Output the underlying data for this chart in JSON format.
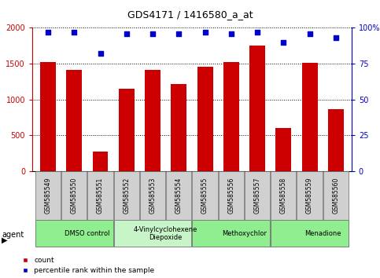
{
  "title": "GDS4171 / 1416580_a_at",
  "samples": [
    "GSM585549",
    "GSM585550",
    "GSM585551",
    "GSM585552",
    "GSM585553",
    "GSM585554",
    "GSM585555",
    "GSM585556",
    "GSM585557",
    "GSM585558",
    "GSM585559",
    "GSM585560"
  ],
  "counts": [
    1520,
    1410,
    270,
    1150,
    1410,
    1220,
    1460,
    1520,
    1750,
    600,
    1510,
    860
  ],
  "percentile_ranks": [
    97,
    97,
    82,
    96,
    96,
    96,
    97,
    96,
    97,
    90,
    96,
    93
  ],
  "agents": [
    {
      "label": "DMSO control",
      "start": 0,
      "end": 3,
      "color": "#90EE90"
    },
    {
      "label": "4-Vinylcyclohexene\nDiepoxide",
      "start": 3,
      "end": 6,
      "color": "#c8f5c8"
    },
    {
      "label": "Methoxychlor",
      "start": 6,
      "end": 9,
      "color": "#90EE90"
    },
    {
      "label": "Menadione",
      "start": 9,
      "end": 12,
      "color": "#90EE90"
    }
  ],
  "bar_color": "#cc0000",
  "dot_color": "#0000cc",
  "left_axis_color": "#cc0000",
  "right_axis_color": "#0000cc",
  "ylim_left": [
    0,
    2000
  ],
  "ylim_right": [
    0,
    100
  ],
  "yticks_left": [
    0,
    500,
    1000,
    1500,
    2000
  ],
  "yticks_right": [
    0,
    25,
    50,
    75,
    100
  ],
  "yticklabels_right": [
    "0",
    "25",
    "50",
    "75",
    "100%"
  ],
  "figsize": [
    4.83,
    3.54
  ],
  "dpi": 100
}
